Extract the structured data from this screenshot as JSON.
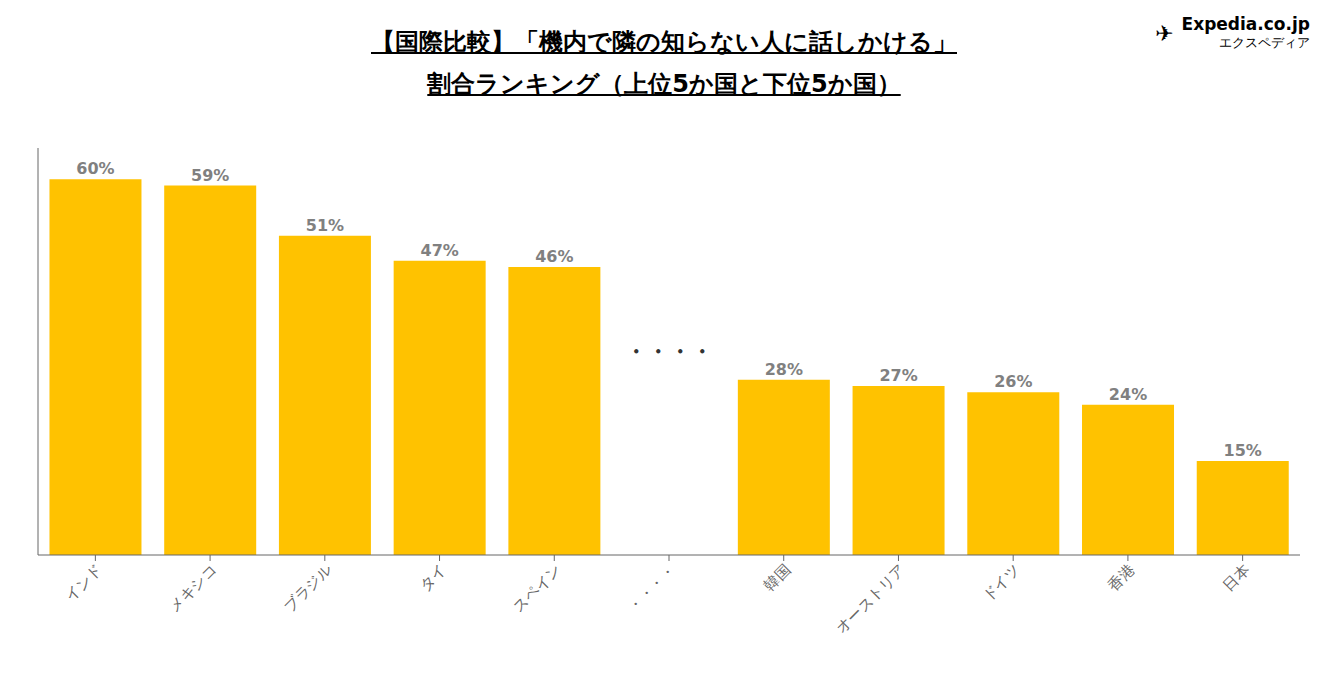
{
  "chart_data": {
    "type": "bar",
    "title": "【国際比較】「機内で隣の知らない人に話しかける」",
    "subtitle": "割合ランキング（上位5か国と下位5か国）",
    "categories": [
      "インド",
      "メキシコ",
      "ブラジル",
      "タイ",
      "スペイン",
      "・・・・",
      "韓国",
      "オーストリア",
      "ドイツ",
      "香港",
      "日本"
    ],
    "values": [
      60,
      59,
      51,
      47,
      46,
      null,
      28,
      27,
      26,
      24,
      15
    ],
    "value_labels": [
      "60%",
      "59%",
      "51%",
      "47%",
      "46%",
      null,
      "28%",
      "27%",
      "26%",
      "24%",
      "15%"
    ],
    "color": "#FFC200",
    "ylim": [
      0,
      65
    ],
    "data_labels": true,
    "tick_labels": "x",
    "grid": false,
    "annotations": [
      "Expedia.co.jp",
      "エクスペディア",
      "✈",
      "・・・・"
    ]
  }
}
